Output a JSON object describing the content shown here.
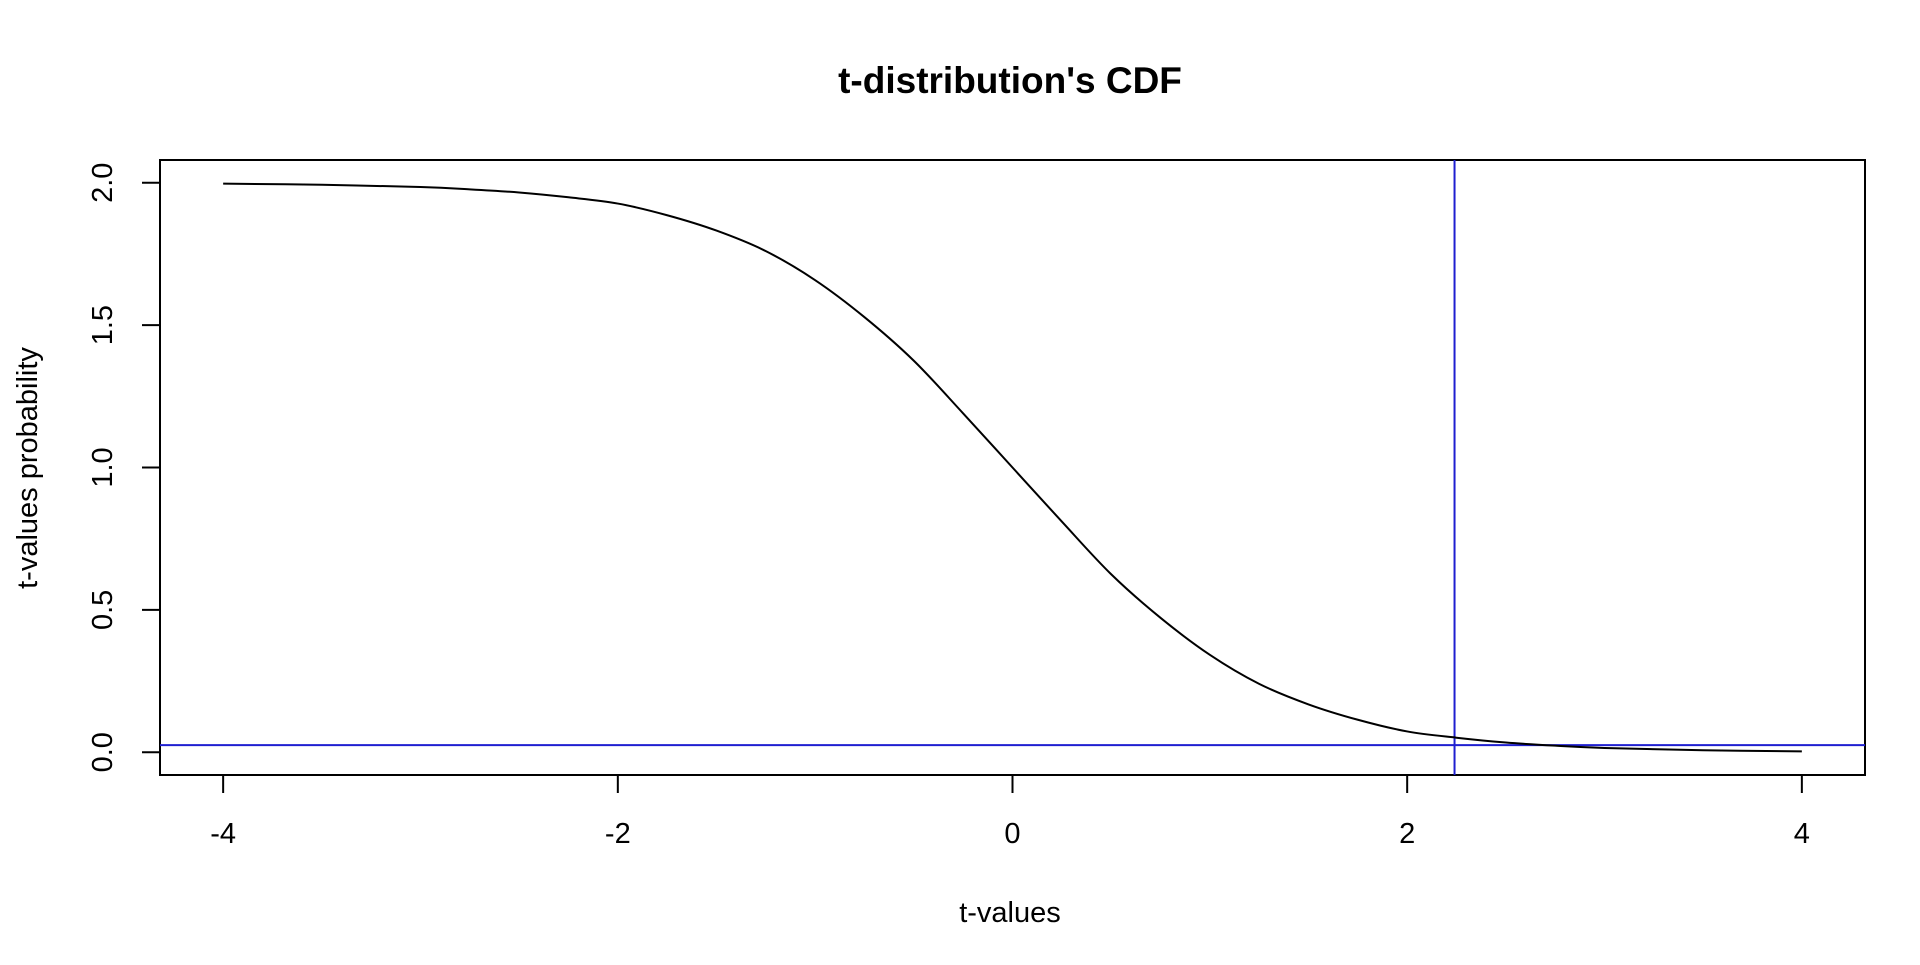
{
  "chart_data": {
    "type": "line",
    "title": "t-distribution's CDF",
    "xlabel": "t-values",
    "ylabel": "t-values probability",
    "xlim": [
      -4.32,
      4.32
    ],
    "ylim": [
      -0.08,
      2.08
    ],
    "x_ticks": [
      -4,
      -2,
      0,
      2,
      4
    ],
    "x_tick_labels": [
      "-4",
      "-2",
      "0",
      "2",
      "4"
    ],
    "y_ticks": [
      0.0,
      0.5,
      1.0,
      1.5,
      2.0
    ],
    "y_tick_labels": [
      "0.0",
      "0.5",
      "1.0",
      "1.5",
      "2.0"
    ],
    "grid": false,
    "series": [
      {
        "color": "#000000",
        "x": [
          -4.0,
          -3.5,
          -3.0,
          -2.75,
          -2.5,
          -2.25,
          -2.0,
          -1.75,
          -1.5,
          -1.25,
          -1.0,
          -0.75,
          -0.5,
          -0.25,
          0.0,
          0.25,
          0.5,
          0.75,
          1.0,
          1.25,
          1.5,
          1.75,
          2.0,
          2.25,
          2.5,
          2.75,
          3.0,
          3.5,
          4.0
        ],
        "y": [
          1.997,
          1.993,
          1.985,
          1.977,
          1.966,
          1.949,
          1.927,
          1.886,
          1.832,
          1.76,
          1.658,
          1.528,
          1.375,
          1.19,
          1.0,
          0.81,
          0.625,
          0.472,
          0.342,
          0.24,
          0.168,
          0.114,
          0.073,
          0.051,
          0.034,
          0.023,
          0.015,
          0.007,
          0.003
        ]
      }
    ],
    "reference_lines": [
      {
        "orientation": "vertical",
        "value": 2.24,
        "color": "#1f1fd0"
      },
      {
        "orientation": "horizontal",
        "value": 0.025,
        "color": "#1f1fd0"
      }
    ]
  }
}
